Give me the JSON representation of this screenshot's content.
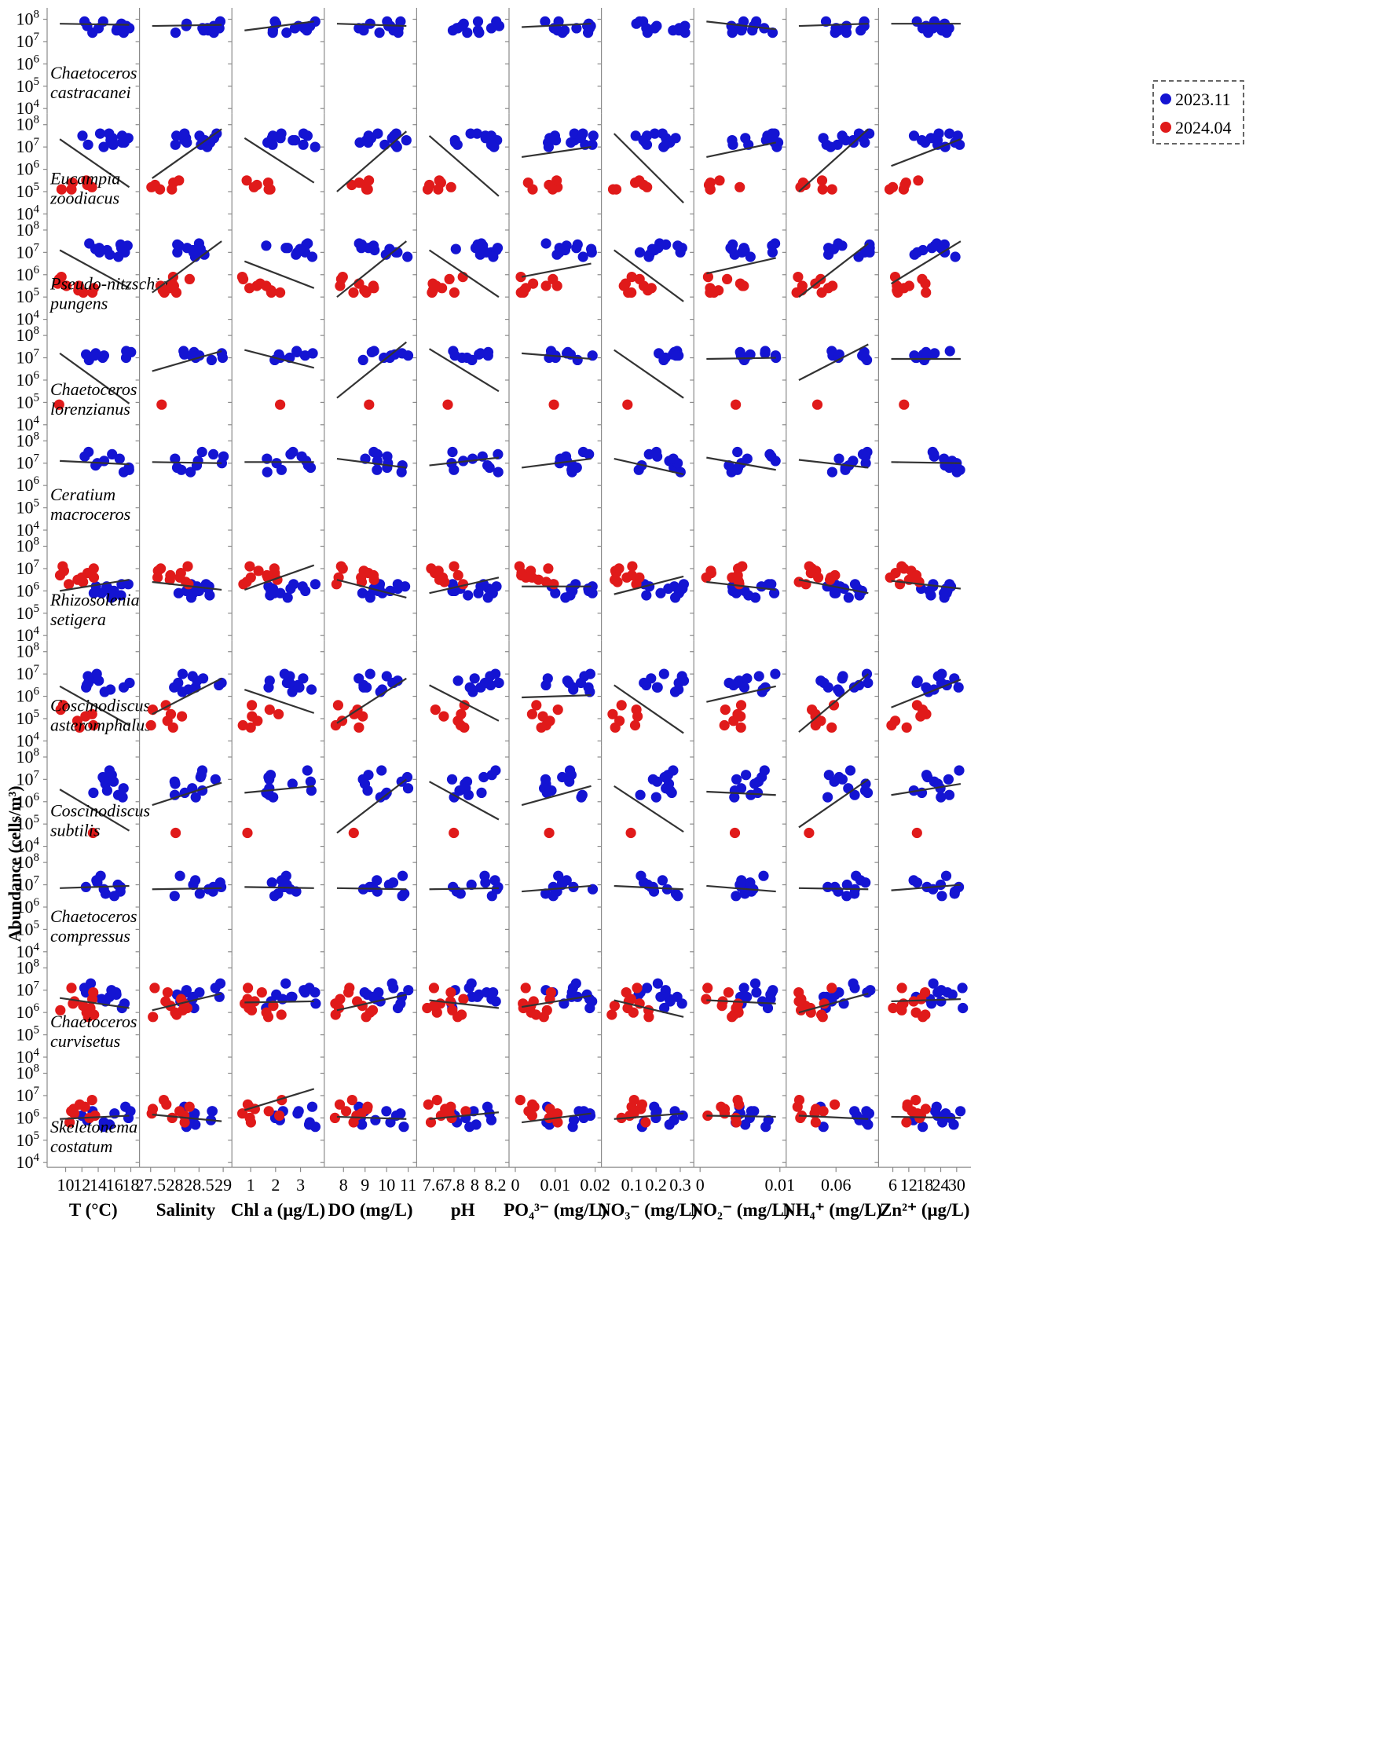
{
  "chart_data": {
    "type": "scatter",
    "ylabel": "Abundance (cells/m³)",
    "y_scale": "log",
    "ylim": [
      10000,
      200000000
    ],
    "y_ticks": [
      {
        "value": 10000,
        "base": "10",
        "exp": "4"
      },
      {
        "value": 100000,
        "base": "10",
        "exp": "5"
      },
      {
        "value": 1000000,
        "base": "10",
        "exp": "6"
      },
      {
        "value": 10000000,
        "base": "10",
        "exp": "7"
      },
      {
        "value": 100000000,
        "base": "10",
        "exp": "8"
      }
    ],
    "colors": {
      "2023.11": "#1414d2",
      "2024.04": "#e01a1a",
      "fit": "#333333"
    },
    "legend": {
      "placement": "top-right",
      "entries": [
        "2023.11",
        "2024.04"
      ]
    },
    "variables": [
      {
        "label": "T (°C)",
        "xlim": [
          8.5,
          18.3
        ],
        "ticks": [
          {
            "v": 10,
            "t": "10"
          },
          {
            "v": 12,
            "t": "12"
          },
          {
            "v": 14,
            "t": "14"
          },
          {
            "v": 16,
            "t": "16"
          },
          {
            "v": 18,
            "t": "18"
          }
        ]
      },
      {
        "label": "Salinity",
        "xlim": [
          27.4,
          29.05
        ],
        "ticks": [
          {
            "v": 27.5,
            "t": "27.5"
          },
          {
            "v": 28,
            "t": "28"
          },
          {
            "v": 28.5,
            "t": "28.5"
          },
          {
            "v": 29,
            "t": "29"
          }
        ]
      },
      {
        "label": "Chl a (μg/L)",
        "xlim": [
          0.5,
          3.7
        ],
        "ticks": [
          {
            "v": 1,
            "t": "1"
          },
          {
            "v": 2,
            "t": "2"
          },
          {
            "v": 3,
            "t": "3"
          }
        ]
      },
      {
        "label": "DO (mg/L)",
        "xlim": [
          7.4,
          11.1
        ],
        "ticks": [
          {
            "v": 8,
            "t": "8"
          },
          {
            "v": 9,
            "t": "9"
          },
          {
            "v": 10,
            "t": "10"
          },
          {
            "v": 11,
            "t": "11"
          }
        ]
      },
      {
        "label": "pH",
        "xlim": [
          7.5,
          8.27
        ],
        "ticks": [
          {
            "v": 7.6,
            "t": "7.6"
          },
          {
            "v": 7.8,
            "t": "7.8"
          },
          {
            "v": 8.0,
            "t": "8"
          },
          {
            "v": 8.2,
            "t": "8.2"
          }
        ]
      },
      {
        "label": "PO₄³⁻ (mg/L)",
        "xlim": [
          0,
          0.02
        ],
        "ticks": [
          {
            "v": 0,
            "t": "0"
          },
          {
            "v": 0.01,
            "t": "0.01"
          },
          {
            "v": 0.02,
            "t": "0.02"
          }
        ]
      },
      {
        "label": "NO₃⁻ (mg/L)",
        "xlim": [
          0,
          0.33
        ],
        "ticks": [
          {
            "v": 0.1,
            "t": "0.1"
          },
          {
            "v": 0.2,
            "t": "0.2"
          },
          {
            "v": 0.3,
            "t": "0.3"
          }
        ]
      },
      {
        "label": "NO₂⁻ (mg/L)",
        "xlim": [
          0,
          0.01
        ],
        "ticks": [
          {
            "v": 0,
            "t": "0"
          },
          {
            "v": 0.01,
            "t": "0.01"
          }
        ]
      },
      {
        "label": "NH₄⁺ (mg/L)",
        "xlim": [
          0,
          0.11
        ],
        "ticks": [
          {
            "v": 0.06,
            "t": "0.06"
          }
        ]
      },
      {
        "label": "Zn²⁺ (μg/L)",
        "xlim": [
          3,
          33
        ],
        "ticks": [
          {
            "v": 6,
            "t": "6"
          },
          {
            "v": 12,
            "t": "12"
          },
          {
            "v": 18,
            "t": "18"
          },
          {
            "v": 24,
            "t": "24"
          },
          {
            "v": 30,
            "t": "30"
          }
        ]
      }
    ],
    "species": [
      {
        "name": [
          "Chaetoceros",
          "castracanei"
        ],
        "blue": [
          7.9,
          7.6,
          7.7,
          7.4,
          7.5,
          7.8,
          7.6,
          7.7,
          7.5,
          7.6,
          7.9,
          7.4
        ],
        "red": [],
        "fits": [
          [
            7.8,
            7.75
          ],
          [
            7.7,
            7.75
          ],
          [
            7.5,
            7.9
          ],
          [
            7.8,
            7.7
          ],
          null,
          [
            7.65,
            7.8
          ],
          null,
          [
            7.9,
            7.55
          ],
          [
            7.7,
            7.8
          ],
          [
            7.8,
            7.8
          ]
        ]
      },
      {
        "name": [
          "Eucampia",
          "zoodiacus"
        ],
        "blue": [
          7.5,
          7.3,
          7.2,
          7.6,
          7.4,
          7.1,
          7.0,
          7.4,
          7.2,
          7.5,
          7.3,
          7.6,
          7.1
        ],
        "red": [
          5.4,
          5.2,
          5.5,
          5.1,
          5.3,
          5.1
        ],
        "fits": [
          [
            7.35,
            5.2
          ],
          [
            5.6,
            7.8
          ],
          [
            7.4,
            5.4
          ],
          [
            5.0,
            7.7
          ],
          [
            7.5,
            4.8
          ],
          [
            6.55,
            7.0
          ],
          [
            7.6,
            4.5
          ],
          [
            6.55,
            7.2
          ],
          [
            5.0,
            7.8
          ],
          [
            6.15,
            7.35
          ]
        ]
      },
      {
        "name": [
          "Pseudo-nitzschia",
          "pungens"
        ],
        "blue": [
          7.4,
          7.2,
          7.0,
          7.3,
          7.1,
          6.9,
          7.2,
          7.35,
          7.0,
          7.15,
          6.8
        ],
        "red": [
          5.8,
          5.5,
          5.3,
          5.2,
          5.6,
          5.4,
          5.9,
          5.2,
          5.5
        ],
        "fits": [
          [
            7.1,
            5.4
          ],
          [
            5.2,
            7.5
          ],
          [
            6.6,
            5.4
          ],
          [
            5.0,
            7.5
          ],
          [
            7.1,
            5.0
          ],
          [
            5.9,
            6.5
          ],
          [
            7.1,
            4.8
          ],
          [
            6.05,
            6.75
          ],
          [
            5.0,
            7.4
          ],
          [
            5.6,
            7.5
          ]
        ]
      },
      {
        "name": [
          "Chaetoceros",
          "lorenzianus"
        ],
        "blue": [
          7.3,
          7.1,
          7.0,
          7.2,
          7.15,
          6.9,
          7.25,
          7.0,
          7.1
        ],
        "red": [
          4.9
        ],
        "fits": [
          [
            7.2,
            4.95
          ],
          [
            6.4,
            7.3
          ],
          [
            7.35,
            6.55
          ],
          [
            5.2,
            7.7
          ],
          [
            7.4,
            5.5
          ],
          [
            7.2,
            6.95
          ],
          [
            7.35,
            5.2
          ],
          [
            6.95,
            7.0
          ],
          [
            6.0,
            7.6
          ],
          [
            6.95,
            6.95
          ]
        ]
      },
      {
        "name": [
          "Ceratium",
          "macroceros"
        ],
        "blue": [
          7.5,
          7.3,
          7.1,
          6.8,
          7.4,
          6.6,
          7.0,
          7.2,
          6.9,
          6.7
        ],
        "red": [],
        "fits": [
          [
            7.1,
            6.95
          ],
          [
            7.05,
            7.0
          ],
          [
            7.05,
            7.05
          ],
          [
            7.2,
            6.8
          ],
          [
            6.9,
            7.25
          ],
          [
            6.8,
            7.2
          ],
          [
            7.2,
            6.5
          ],
          [
            7.25,
            6.7
          ],
          [
            7.15,
            6.8
          ],
          [
            7.05,
            7.0
          ]
        ]
      },
      {
        "name": [
          "Rhizosolenia",
          "setigera"
        ],
        "blue": [
          6.3,
          6.1,
          5.9,
          6.2,
          6.0,
          5.8,
          6.1,
          5.9,
          6.2,
          6.0,
          5.7,
          6.3
        ],
        "red": [
          7.1,
          6.9,
          6.6,
          6.4,
          6.8,
          6.5,
          6.3,
          7.0,
          6.6,
          6.7
        ],
        "fits": [
          [
            6.0,
            6.5
          ],
          [
            6.4,
            6.05
          ],
          [
            6.05,
            7.15
          ],
          [
            6.5,
            5.7
          ],
          [
            5.9,
            6.6
          ],
          [
            6.2,
            6.2
          ],
          [
            5.85,
            6.65
          ],
          [
            6.4,
            6.05
          ],
          [
            6.5,
            5.9
          ],
          [
            6.45,
            6.1
          ]
        ]
      },
      {
        "name": [
          "Coscinodiscus",
          "asteromphalus"
        ],
        "blue": [
          6.9,
          6.6,
          6.4,
          6.7,
          6.5,
          6.3,
          6.6,
          6.8,
          6.4,
          7.0,
          6.2
        ],
        "red": [
          5.4,
          5.1,
          4.7,
          4.9,
          5.6,
          4.6,
          5.2
        ],
        "fits": [
          [
            6.45,
            4.7
          ],
          [
            5.2,
            6.8
          ],
          [
            6.3,
            5.25
          ],
          [
            4.8,
            6.8
          ],
          [
            6.5,
            4.9
          ],
          [
            5.95,
            6.05
          ],
          [
            6.5,
            4.35
          ],
          [
            5.75,
            6.45
          ],
          [
            4.4,
            7.0
          ],
          [
            5.5,
            6.75
          ]
        ]
      },
      {
        "name": [
          "Coscinodiscus",
          "subtilis"
        ],
        "blue": [
          7.4,
          7.2,
          6.8,
          6.5,
          7.0,
          6.3,
          6.9,
          7.1,
          6.6,
          6.2,
          6.4
        ],
        "red": [
          4.6
        ],
        "fits": [
          [
            6.55,
            4.7
          ],
          [
            5.85,
            6.85
          ],
          [
            6.4,
            6.7
          ],
          [
            4.6,
            7.0
          ],
          [
            6.9,
            5.2
          ],
          [
            5.85,
            6.7
          ],
          [
            6.7,
            4.65
          ],
          [
            6.45,
            6.3
          ],
          [
            4.85,
            7.0
          ],
          [
            6.3,
            6.8
          ]
        ]
      },
      {
        "name": [
          "Chaetoceros",
          "compressus"
        ],
        "blue": [
          7.4,
          7.2,
          6.9,
          6.7,
          7.0,
          6.6,
          6.8,
          7.1,
          6.5,
          6.9
        ],
        "red": [],
        "fits": [
          [
            6.85,
            6.95
          ],
          [
            6.8,
            6.85
          ],
          [
            6.9,
            6.85
          ],
          [
            6.85,
            6.8
          ],
          [
            6.8,
            6.85
          ],
          [
            6.7,
            6.95
          ],
          [
            6.95,
            6.8
          ],
          [
            6.95,
            6.7
          ],
          [
            6.85,
            6.8
          ],
          [
            6.75,
            7.0
          ]
        ]
      },
      {
        "name": [
          "Chaetoceros",
          "curvisetus"
        ],
        "blue": [
          7.1,
          6.9,
          6.7,
          6.6,
          6.8,
          6.5,
          6.9,
          7.3,
          6.4,
          6.2,
          6.7,
          7.0
        ],
        "red": [
          7.1,
          6.9,
          6.4,
          6.2,
          6.0,
          5.9,
          6.3,
          6.5,
          6.1,
          5.8,
          6.6
        ],
        "fits": [
          [
            6.65,
            6.2
          ],
          [
            6.1,
            6.85
          ],
          [
            6.45,
            6.5
          ],
          [
            6.1,
            6.8
          ],
          [
            6.55,
            6.2
          ],
          [
            6.25,
            6.75
          ],
          [
            6.55,
            5.8
          ],
          [
            6.55,
            6.4
          ],
          [
            6.0,
            6.85
          ],
          [
            6.5,
            6.6
          ]
        ]
      },
      {
        "name": [
          "Skeletonema",
          "costatum"
        ],
        "blue": [
          6.5,
          6.3,
          6.1,
          5.9,
          6.0,
          5.7,
          6.2,
          5.6,
          6.3,
          5.8
        ],
        "red": [
          6.8,
          6.5,
          6.3,
          6.1,
          6.0,
          6.4,
          5.8,
          6.6,
          6.2
        ],
        "fits": [
          [
            5.95,
            6.1
          ],
          [
            6.15,
            5.85
          ],
          [
            6.35,
            7.3
          ],
          [
            6.05,
            5.95
          ],
          [
            5.95,
            6.25
          ],
          [
            5.8,
            6.2
          ],
          [
            5.95,
            6.2
          ],
          [
            6.1,
            6.05
          ],
          [
            6.1,
            5.95
          ],
          [
            6.05,
            6.0
          ]
        ]
      }
    ]
  }
}
